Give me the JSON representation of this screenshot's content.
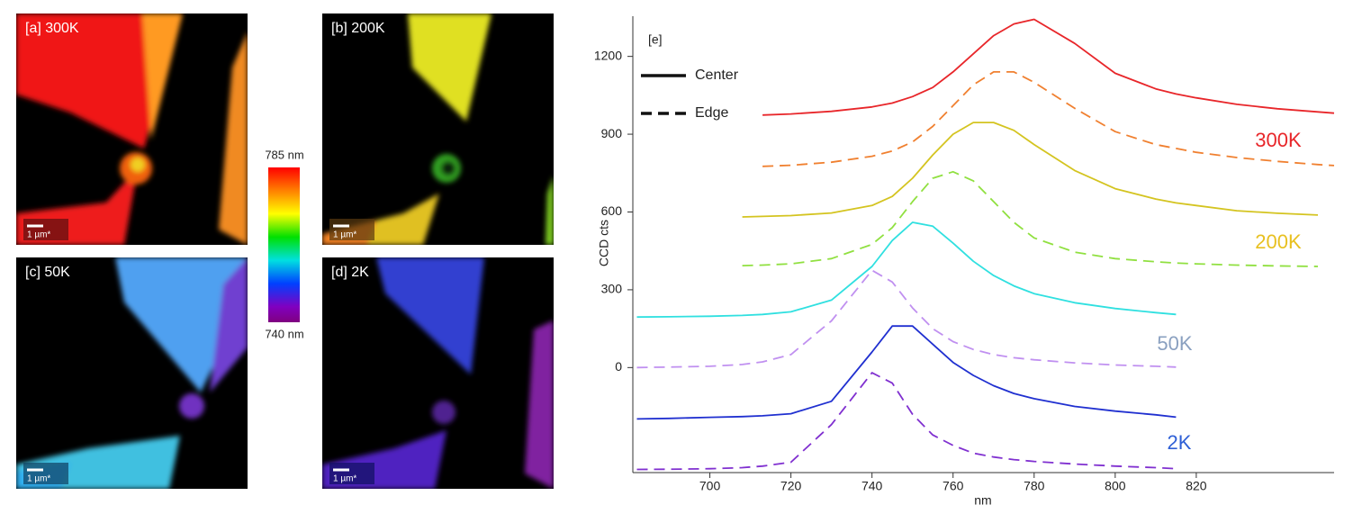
{
  "panels": [
    {
      "label": "[a] 300K",
      "scale_bar": "1 µm*"
    },
    {
      "label": "[b] 200K",
      "scale_bar": "1 µm*"
    },
    {
      "label": "[c] 50K",
      "scale_bar": "1 µm*"
    },
    {
      "label": "[d] 2K",
      "scale_bar": "1 µm*"
    }
  ],
  "colorbar": {
    "max_label": "785 nm",
    "min_label": "740 nm"
  },
  "chart_data": {
    "type": "line",
    "panel_label": "[e]",
    "x_label": "nm",
    "y_label": "CCD cts",
    "x": [
      682,
      690,
      700,
      708,
      713,
      720,
      730,
      740,
      745,
      750,
      755,
      760,
      765,
      770,
      775,
      780,
      790,
      800,
      810,
      815,
      820,
      830,
      840,
      850,
      854
    ],
    "xlim": [
      681,
      854
    ],
    "ylim": [
      -405,
      1355
    ],
    "xticks": [
      700,
      720,
      740,
      760,
      780,
      800,
      820
    ],
    "yticks": [
      0,
      300,
      600,
      900,
      1200
    ],
    "legend": [
      {
        "label": "Center",
        "dash": "solid"
      },
      {
        "label": "Edge",
        "dash": "dashed"
      }
    ],
    "series": [
      {
        "color": "#e8262a",
        "dash": "solid",
        "values": [
          null,
          null,
          null,
          null,
          974,
          978,
          988,
          1005,
          1020,
          1045,
          1080,
          1140,
          1210,
          1280,
          1325,
          1343,
          1250,
          1135,
          1075,
          1055,
          1040,
          1015,
          998,
          986,
          981
        ]
      },
      {
        "color": "#f08030",
        "dash": "dashed",
        "values": [
          null,
          null,
          null,
          null,
          776,
          780,
          792,
          815,
          835,
          870,
          930,
          1010,
          1090,
          1140,
          1140,
          1100,
          1000,
          910,
          860,
          845,
          830,
          810,
          795,
          783,
          779
        ]
      },
      {
        "color": "#d4c420",
        "dash": "solid",
        "values": [
          null,
          null,
          null,
          581,
          583,
          586,
          596,
          625,
          660,
          730,
          820,
          900,
          945,
          945,
          915,
          860,
          760,
          690,
          650,
          635,
          625,
          605,
          595,
          588,
          null
        ]
      },
      {
        "color": "#90e040",
        "dash": "dashed",
        "values": [
          null,
          null,
          null,
          393,
          395,
          400,
          420,
          475,
          540,
          640,
          730,
          755,
          720,
          640,
          560,
          500,
          445,
          420,
          408,
          403,
          400,
          395,
          392,
          390,
          null
        ]
      },
      {
        "color": "#30e0e0",
        "dash": "solid",
        "values": [
          195,
          196,
          198,
          201,
          205,
          215,
          260,
          390,
          490,
          560,
          545,
          480,
          410,
          355,
          315,
          285,
          250,
          228,
          212,
          205,
          null,
          null,
          null,
          null,
          null
        ]
      },
      {
        "color": "#c090f0",
        "dash": "dashed",
        "values": [
          0,
          2,
          5,
          12,
          22,
          50,
          180,
          375,
          330,
          230,
          150,
          100,
          70,
          50,
          38,
          30,
          18,
          10,
          5,
          2,
          null,
          null,
          null,
          null,
          null
        ]
      },
      {
        "color": "#2030d0",
        "dash": "solid",
        "values": [
          -198,
          -196,
          -192,
          -189,
          -186,
          -178,
          -130,
          60,
          160,
          160,
          90,
          20,
          -30,
          -70,
          -100,
          -120,
          -150,
          -168,
          -182,
          -191,
          null,
          null,
          null,
          null,
          null
        ]
      },
      {
        "color": "#8030d0",
        "dash": "dashed",
        "values": [
          -393,
          -392,
          -390,
          -386,
          -380,
          -365,
          -220,
          -20,
          -60,
          -180,
          -260,
          -300,
          -330,
          -345,
          -355,
          -362,
          -372,
          -380,
          -386,
          -390,
          null,
          null,
          null,
          null,
          null
        ]
      }
    ],
    "annotations": [
      {
        "text": "300K",
        "color": "#e8262a"
      },
      {
        "text": "200K",
        "color": "#e8c020"
      },
      {
        "text": "50K",
        "color": "#8aa0c0"
      },
      {
        "text": "2K",
        "color": "#2e5fd6"
      }
    ]
  }
}
